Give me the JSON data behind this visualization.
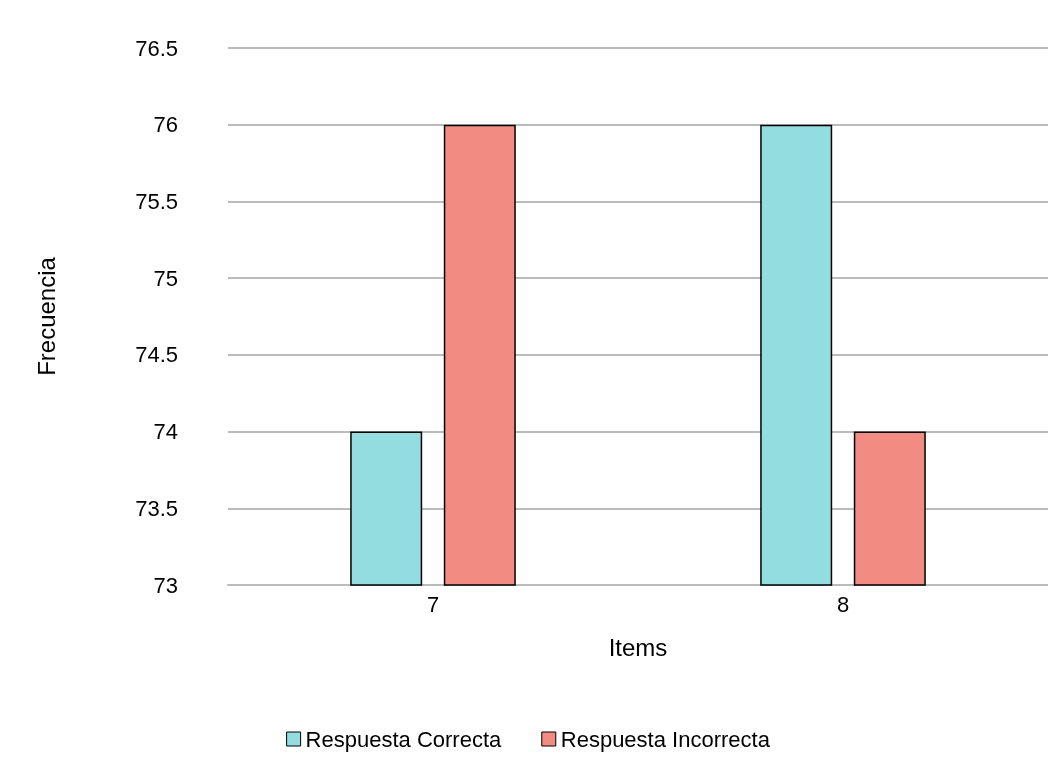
{
  "chart_data": {
    "type": "bar",
    "xlabel": "Items",
    "ylabel": "Frecuencia",
    "categories": [
      "7",
      "8"
    ],
    "series": [
      {
        "name": "Respuesta Correcta",
        "color": "#93dde0",
        "values": [
          74,
          76
        ]
      },
      {
        "name": "Respuesta Incorrecta",
        "color": "#f28b82",
        "values": [
          76,
          74
        ]
      }
    ],
    "ylim": [
      73,
      76.5
    ],
    "yticks": [
      73,
      73.5,
      74,
      74.5,
      75,
      75.5,
      76,
      76.5
    ],
    "grid": "y",
    "legend": "bottom"
  }
}
